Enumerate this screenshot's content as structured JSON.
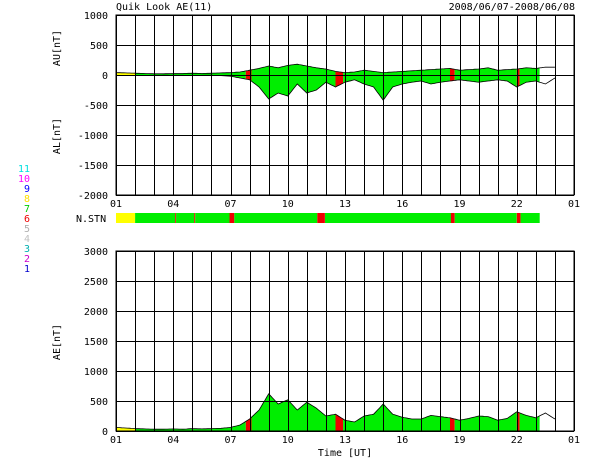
{
  "header": {
    "title": "Quik Look AE(11)",
    "date_range": "2008/06/07-2008/06/08"
  },
  "colors": {
    "ok": "#00ee00",
    "partial": "#ffff00",
    "missing": "#ee0000",
    "grid": "#000000"
  },
  "legend": {
    "items": [
      {
        "label": "11",
        "color": "#00e0e0"
      },
      {
        "label": "10",
        "color": "#ff00ff"
      },
      {
        "label": "9",
        "color": "#0000ff"
      },
      {
        "label": "8",
        "color": "#ffe000"
      },
      {
        "label": "7",
        "color": "#00cc00"
      },
      {
        "label": "6",
        "color": "#ee0000"
      },
      {
        "label": "5",
        "color": "#b0b0b0"
      },
      {
        "label": "4",
        "color": "#c0c0c0"
      },
      {
        "label": "3",
        "color": "#00b0b0"
      },
      {
        "label": "2",
        "color": "#cc00cc"
      },
      {
        "label": "1",
        "color": "#0000cc"
      }
    ]
  },
  "chart_data": [
    {
      "type": "area",
      "name": "au-al-panel",
      "ylabel_top": "AU[nT]",
      "ylabel_bottom": "AL[nT]",
      "ylim": [
        -2000,
        1000
      ],
      "yticks": [
        1000,
        500,
        0,
        -500,
        -1000,
        -1500,
        -2000
      ],
      "xlim": [
        0,
        24
      ],
      "xticks": [
        "01",
        "04",
        "07",
        "10",
        "13",
        "16",
        "19",
        "22",
        "01"
      ],
      "grid": true,
      "au": {
        "x": [
          0,
          0.5,
          1,
          1.5,
          2,
          2.5,
          3,
          3.5,
          4,
          4.5,
          5,
          5.5,
          6,
          6.5,
          7,
          7.5,
          8,
          8.5,
          9,
          9.5,
          10,
          10.5,
          11,
          11.5,
          12,
          12.5,
          13,
          13.5,
          14,
          14.5,
          15,
          15.5,
          16,
          16.5,
          17,
          17.5,
          18,
          18.5,
          19,
          19.5,
          20,
          20.5,
          21,
          21.5,
          22,
          22.5,
          23
        ],
        "values": [
          40,
          35,
          30,
          25,
          20,
          20,
          25,
          25,
          30,
          25,
          30,
          35,
          40,
          50,
          80,
          110,
          150,
          120,
          160,
          180,
          150,
          120,
          100,
          60,
          40,
          50,
          80,
          60,
          40,
          50,
          60,
          70,
          80,
          90,
          100,
          110,
          80,
          90,
          100,
          120,
          80,
          90,
          100,
          120,
          110,
          130,
          130
        ]
      },
      "al": {
        "x": [
          0,
          0.5,
          1,
          1.5,
          2,
          2.5,
          3,
          3.5,
          4,
          4.5,
          5,
          5.5,
          6,
          6.5,
          7,
          7.5,
          8,
          8.5,
          9,
          9.5,
          10,
          10.5,
          11,
          11.5,
          12,
          12.5,
          13,
          13.5,
          14,
          14.5,
          15,
          15.5,
          16,
          16.5,
          17,
          17.5,
          18,
          18.5,
          19,
          19.5,
          20,
          20.5,
          21,
          21.5,
          22,
          22.5,
          23
        ],
        "values": [
          -10,
          -10,
          -10,
          -10,
          -10,
          -5,
          -5,
          -5,
          -10,
          -5,
          -5,
          -10,
          -20,
          -50,
          -80,
          -200,
          -400,
          -300,
          -350,
          -150,
          -300,
          -250,
          -120,
          -200,
          -120,
          -80,
          -150,
          -200,
          -420,
          -200,
          -150,
          -120,
          -100,
          -150,
          -120,
          -100,
          -80,
          -100,
          -120,
          -100,
          -80,
          -100,
          -200,
          -120,
          -100,
          -150,
          -50
        ]
      },
      "status_bands": [
        {
          "start": 0,
          "end": 1.0,
          "status": "partial"
        },
        {
          "start": 1.0,
          "end": 6.8,
          "status": "ok"
        },
        {
          "start": 6.8,
          "end": 7.1,
          "status": "missing"
        },
        {
          "start": 7.1,
          "end": 11.5,
          "status": "ok"
        },
        {
          "start": 11.5,
          "end": 11.9,
          "status": "missing"
        },
        {
          "start": 11.9,
          "end": 17.5,
          "status": "ok"
        },
        {
          "start": 17.5,
          "end": 17.75,
          "status": "missing"
        },
        {
          "start": 17.75,
          "end": 21.0,
          "status": "ok"
        },
        {
          "start": 21.0,
          "end": 21.15,
          "status": "missing"
        },
        {
          "start": 21.15,
          "end": 22.2,
          "status": "ok"
        }
      ]
    },
    {
      "type": "bar",
      "name": "nstn-strip",
      "label": "N.STN",
      "xlim": [
        0,
        24
      ],
      "bands": [
        {
          "start": 0,
          "end": 1.0,
          "status": "partial"
        },
        {
          "start": 1.0,
          "end": 3.1,
          "status": "ok"
        },
        {
          "start": 3.1,
          "end": 3.15,
          "status": "missing"
        },
        {
          "start": 3.15,
          "end": 4.1,
          "status": "ok"
        },
        {
          "start": 4.1,
          "end": 4.15,
          "status": "missing"
        },
        {
          "start": 4.15,
          "end": 5.95,
          "status": "ok"
        },
        {
          "start": 5.95,
          "end": 6.2,
          "status": "missing"
        },
        {
          "start": 6.2,
          "end": 10.55,
          "status": "ok"
        },
        {
          "start": 10.55,
          "end": 10.95,
          "status": "missing"
        },
        {
          "start": 10.95,
          "end": 17.55,
          "status": "ok"
        },
        {
          "start": 17.55,
          "end": 17.75,
          "status": "missing"
        },
        {
          "start": 17.75,
          "end": 21.0,
          "status": "ok"
        },
        {
          "start": 21.0,
          "end": 21.2,
          "status": "missing"
        },
        {
          "start": 21.2,
          "end": 22.2,
          "status": "ok"
        }
      ]
    },
    {
      "type": "area",
      "name": "ae-panel",
      "ylabel": "AE[nT]",
      "xlabel": "Time [UT]",
      "ylim": [
        0,
        3000
      ],
      "yticks": [
        3000,
        2500,
        2000,
        1500,
        1000,
        500,
        0
      ],
      "xlim": [
        0,
        24
      ],
      "xticks": [
        "01",
        "04",
        "07",
        "10",
        "13",
        "16",
        "19",
        "22",
        "01"
      ],
      "grid": true,
      "ae": {
        "x": [
          0,
          0.5,
          1,
          1.5,
          2,
          2.5,
          3,
          3.5,
          4,
          4.5,
          5,
          5.5,
          6,
          6.5,
          7,
          7.5,
          8,
          8.5,
          9,
          9.5,
          10,
          10.5,
          11,
          11.5,
          12,
          12.5,
          13,
          13.5,
          14,
          14.5,
          15,
          15.5,
          16,
          16.5,
          17,
          17.5,
          18,
          18.5,
          19,
          19.5,
          20,
          20.5,
          21,
          21.5,
          22,
          22.5,
          23
        ],
        "values": [
          60,
          50,
          40,
          35,
          30,
          30,
          35,
          30,
          40,
          35,
          40,
          45,
          60,
          100,
          200,
          350,
          620,
          450,
          520,
          350,
          480,
          380,
          250,
          280,
          180,
          150,
          250,
          280,
          450,
          280,
          230,
          200,
          200,
          260,
          240,
          220,
          180,
          210,
          250,
          240,
          180,
          210,
          320,
          260,
          220,
          300,
          200
        ]
      },
      "status_bands": [
        {
          "start": 0,
          "end": 1.0,
          "status": "partial"
        },
        {
          "start": 1.0,
          "end": 6.8,
          "status": "ok"
        },
        {
          "start": 6.8,
          "end": 7.1,
          "status": "missing"
        },
        {
          "start": 7.1,
          "end": 11.5,
          "status": "ok"
        },
        {
          "start": 11.5,
          "end": 11.9,
          "status": "missing"
        },
        {
          "start": 11.9,
          "end": 17.5,
          "status": "ok"
        },
        {
          "start": 17.5,
          "end": 17.75,
          "status": "missing"
        },
        {
          "start": 17.75,
          "end": 21.0,
          "status": "ok"
        },
        {
          "start": 21.0,
          "end": 21.15,
          "status": "missing"
        },
        {
          "start": 21.15,
          "end": 22.2,
          "status": "ok"
        }
      ]
    }
  ]
}
